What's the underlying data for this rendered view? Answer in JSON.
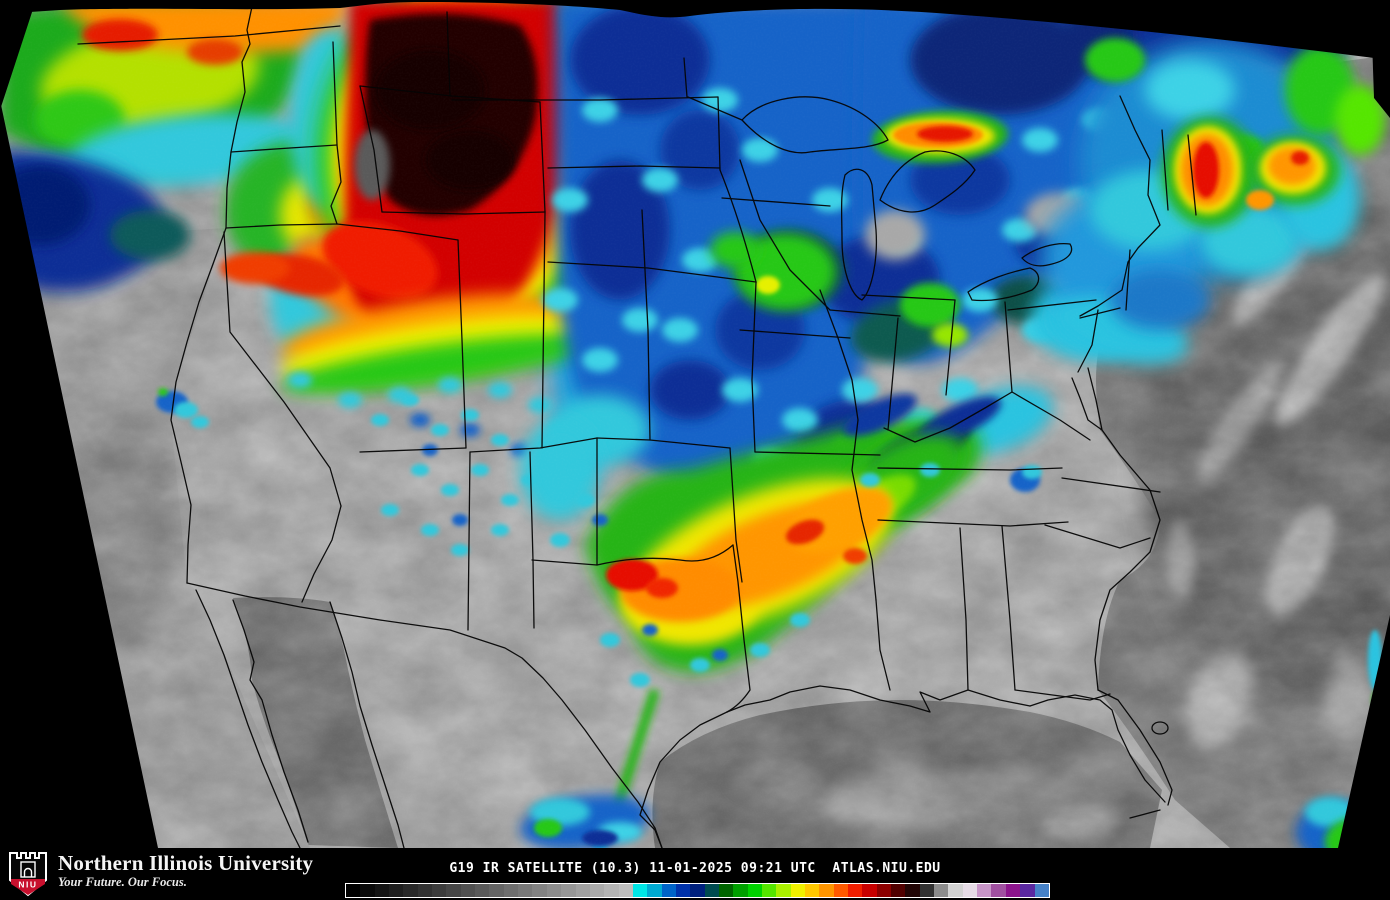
{
  "map": {
    "description": "GOES-19 color-enhanced infrared satellite image of the continental United States with state borders",
    "land_gray": "#a8a8a8",
    "ocean_gray": "#6e6e6e",
    "state_border_color": "#000000",
    "space_edge_color": "#000000"
  },
  "footer": {
    "logo": {
      "org_name": "Northern Illinois University",
      "tagline": "Your Future. Our Focus.",
      "shield_text": "NIU",
      "shield_red": "#c8102e"
    },
    "caption": "G19 IR SATELLITE (10.3) 11-01-2025 09:21 UTC  ATLAS.NIU.EDU",
    "caption_parts": {
      "product": "G19 IR SATELLITE (10.3)",
      "date": "11-01-2025",
      "time": "09:21 UTC",
      "source": "ATLAS.NIU.EDU"
    }
  },
  "colorbar": {
    "frame_color": "#ffffff",
    "colors": [
      "#000000",
      "#0a0a0a",
      "#141414",
      "#1e1e1e",
      "#282828",
      "#323232",
      "#3c3c3c",
      "#464646",
      "#505050",
      "#5a5a5a",
      "#646464",
      "#6e6e6e",
      "#787878",
      "#828282",
      "#8c8c8c",
      "#969696",
      "#a0a0a0",
      "#aaaaaa",
      "#b4b4b4",
      "#bebebe",
      "#00e6e6",
      "#00aad2",
      "#0064c8",
      "#0032aa",
      "#00207d",
      "#004b50",
      "#006400",
      "#00a000",
      "#00d200",
      "#55e600",
      "#aaf000",
      "#f0f000",
      "#ffc800",
      "#ff9600",
      "#ff5a00",
      "#f01e00",
      "#c80000",
      "#8c0000",
      "#500000",
      "#200505",
      "#323232",
      "#8c8c8c",
      "#d2d2d2",
      "#e6dce6",
      "#c896c8",
      "#a050a0",
      "#8c148c",
      "#5a28a0",
      "#4682c8"
    ]
  }
}
